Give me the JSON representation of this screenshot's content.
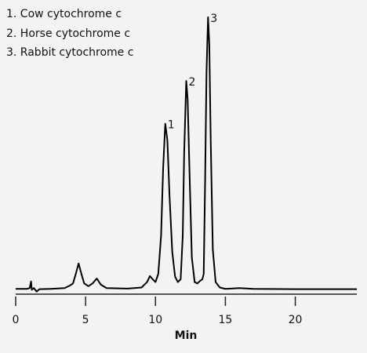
{
  "chart_data": {
    "type": "line",
    "annotations": [
      "1. Cow cytochrome c",
      "2. Horse cytochrome c",
      "3. Rabbit cytochrome c"
    ],
    "peak_labels": [
      "1",
      "2",
      "3"
    ],
    "xlabel": "Min",
    "x": [
      0,
      0.8,
      1.0,
      1.1,
      1.15,
      1.3,
      1.5,
      1.7,
      2.5,
      3.5,
      3.9,
      4.1,
      4.3,
      4.5,
      4.7,
      4.9,
      5.2,
      5.5,
      5.8,
      6.1,
      6.5,
      8,
      9,
      9.4,
      9.6,
      9.8,
      10.0,
      10.2,
      10.4,
      10.55,
      10.7,
      10.85,
      11.0,
      11.2,
      11.4,
      11.6,
      11.8,
      11.95,
      12.05,
      12.2,
      12.3,
      12.45,
      12.6,
      12.8,
      13.0,
      13.2,
      13.35,
      13.45,
      13.55,
      13.65,
      13.76,
      13.85,
      13.95,
      14.1,
      14.3,
      14.6,
      15,
      16,
      17,
      20,
      24.4
    ],
    "values": [
      0.5,
      0.5,
      0.8,
      3.2,
      0.2,
      0.8,
      -0.5,
      0.4,
      0.5,
      0.8,
      1.8,
      2.5,
      6,
      9.8,
      6,
      2.5,
      1.5,
      2.5,
      4.3,
      2,
      0.8,
      0.6,
      1,
      3,
      5.2,
      4,
      3,
      6,
      20,
      45,
      61,
      55,
      35,
      14,
      5,
      3,
      4,
      20,
      50,
      76.7,
      70,
      40,
      12,
      3,
      2.5,
      3.5,
      4,
      6,
      40,
      80,
      100,
      90,
      55,
      15,
      3,
      1,
      0.5,
      0.8,
      0.5,
      0.4,
      0.4
    ],
    "color": "#000000",
    "xlim": [
      0,
      24.4
    ],
    "xticks": [
      0,
      5,
      10,
      15,
      20
    ],
    "ylim": [
      0,
      100
    ],
    "grid": false
  }
}
